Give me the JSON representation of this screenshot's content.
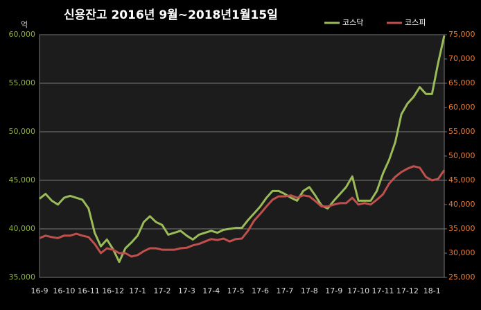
{
  "chart_data": {
    "type": "line",
    "title": "신용잔고 2016년 9월~2018년1월15일",
    "y_label": "억",
    "legend": "upper right",
    "grid": true,
    "categories": [
      "16-9",
      null,
      null,
      null,
      "16-10",
      null,
      null,
      null,
      "16-11",
      null,
      null,
      null,
      "16-12",
      null,
      null,
      null,
      "17-1",
      null,
      null,
      null,
      "17-2",
      null,
      null,
      null,
      "17-3",
      null,
      null,
      null,
      "17-4",
      null,
      null,
      null,
      "17-5",
      null,
      null,
      null,
      "17-6",
      null,
      null,
      null,
      "17-7",
      null,
      null,
      null,
      "17-8",
      null,
      null,
      null,
      "17-9",
      null,
      null,
      null,
      "17-10",
      null,
      null,
      null,
      "17-11",
      null,
      null,
      null,
      "17-12",
      null,
      null,
      null,
      "18-1",
      null,
      null
    ],
    "ylim": [
      35000,
      60000
    ],
    "yticks": [
      {
        "value": 35000,
        "label": "35,000"
      },
      {
        "value": 40000,
        "label": "40,000"
      },
      {
        "value": 45000,
        "label": "45,000"
      },
      {
        "value": 50000,
        "label": "50,000"
      },
      {
        "value": 55000,
        "label": "55,000"
      },
      {
        "value": 60000,
        "label": "60,000"
      }
    ],
    "y2lim": [
      25000,
      75000
    ],
    "y2ticks": [
      {
        "value": 25000,
        "label": "25,000"
      },
      {
        "value": 30000,
        "label": "30,000"
      },
      {
        "value": 35000,
        "label": "35,000"
      },
      {
        "value": 40000,
        "label": "40,000"
      },
      {
        "value": 45000,
        "label": "45,000"
      },
      {
        "value": 50000,
        "label": "50,000"
      },
      {
        "value": 55000,
        "label": "55,000"
      },
      {
        "value": 60000,
        "label": "60,000"
      },
      {
        "value": 65000,
        "label": "65,000"
      },
      {
        "value": 70000,
        "label": "70,000"
      },
      {
        "value": 75000,
        "label": "75,000"
      }
    ],
    "series": [
      {
        "name": "코스닥",
        "color": "#9bbb59",
        "axis": "y",
        "values": [
          43100,
          43600,
          42900,
          42500,
          43200,
          43400,
          43200,
          43000,
          42100,
          39600,
          38200,
          38900,
          37900,
          36600,
          38000,
          38600,
          39300,
          40700,
          41300,
          40700,
          40400,
          39400,
          39600,
          39800,
          39300,
          38900,
          39400,
          39600,
          39800,
          39600,
          39900,
          40000,
          40100,
          40100,
          40900,
          41600,
          42300,
          43200,
          43900,
          43900,
          43600,
          43200,
          42900,
          43900,
          44300,
          43400,
          42400,
          42100,
          42900,
          43600,
          44300,
          45400,
          42900,
          42900,
          42900,
          43900,
          45700,
          47100,
          48900,
          51800,
          52900,
          53600,
          54600,
          53900,
          53900,
          57100,
          59900
        ]
      },
      {
        "name": "코스피",
        "color": "#c0504d",
        "axis": "y2",
        "values": [
          33100,
          33600,
          33300,
          33100,
          33600,
          33600,
          34000,
          33600,
          33300,
          31900,
          30000,
          31000,
          30700,
          30000,
          30000,
          29300,
          29600,
          30400,
          31000,
          31000,
          30700,
          30700,
          30700,
          31000,
          31100,
          31600,
          31900,
          32400,
          32900,
          32700,
          33000,
          32400,
          32900,
          33000,
          34600,
          36700,
          38100,
          39600,
          41000,
          41700,
          41700,
          41900,
          41400,
          41900,
          41700,
          40700,
          39600,
          39600,
          40000,
          40300,
          40300,
          41400,
          40000,
          40300,
          40000,
          41000,
          42100,
          44300,
          45700,
          46700,
          47400,
          47900,
          47600,
          45700,
          45000,
          45300,
          47100
        ]
      }
    ]
  }
}
